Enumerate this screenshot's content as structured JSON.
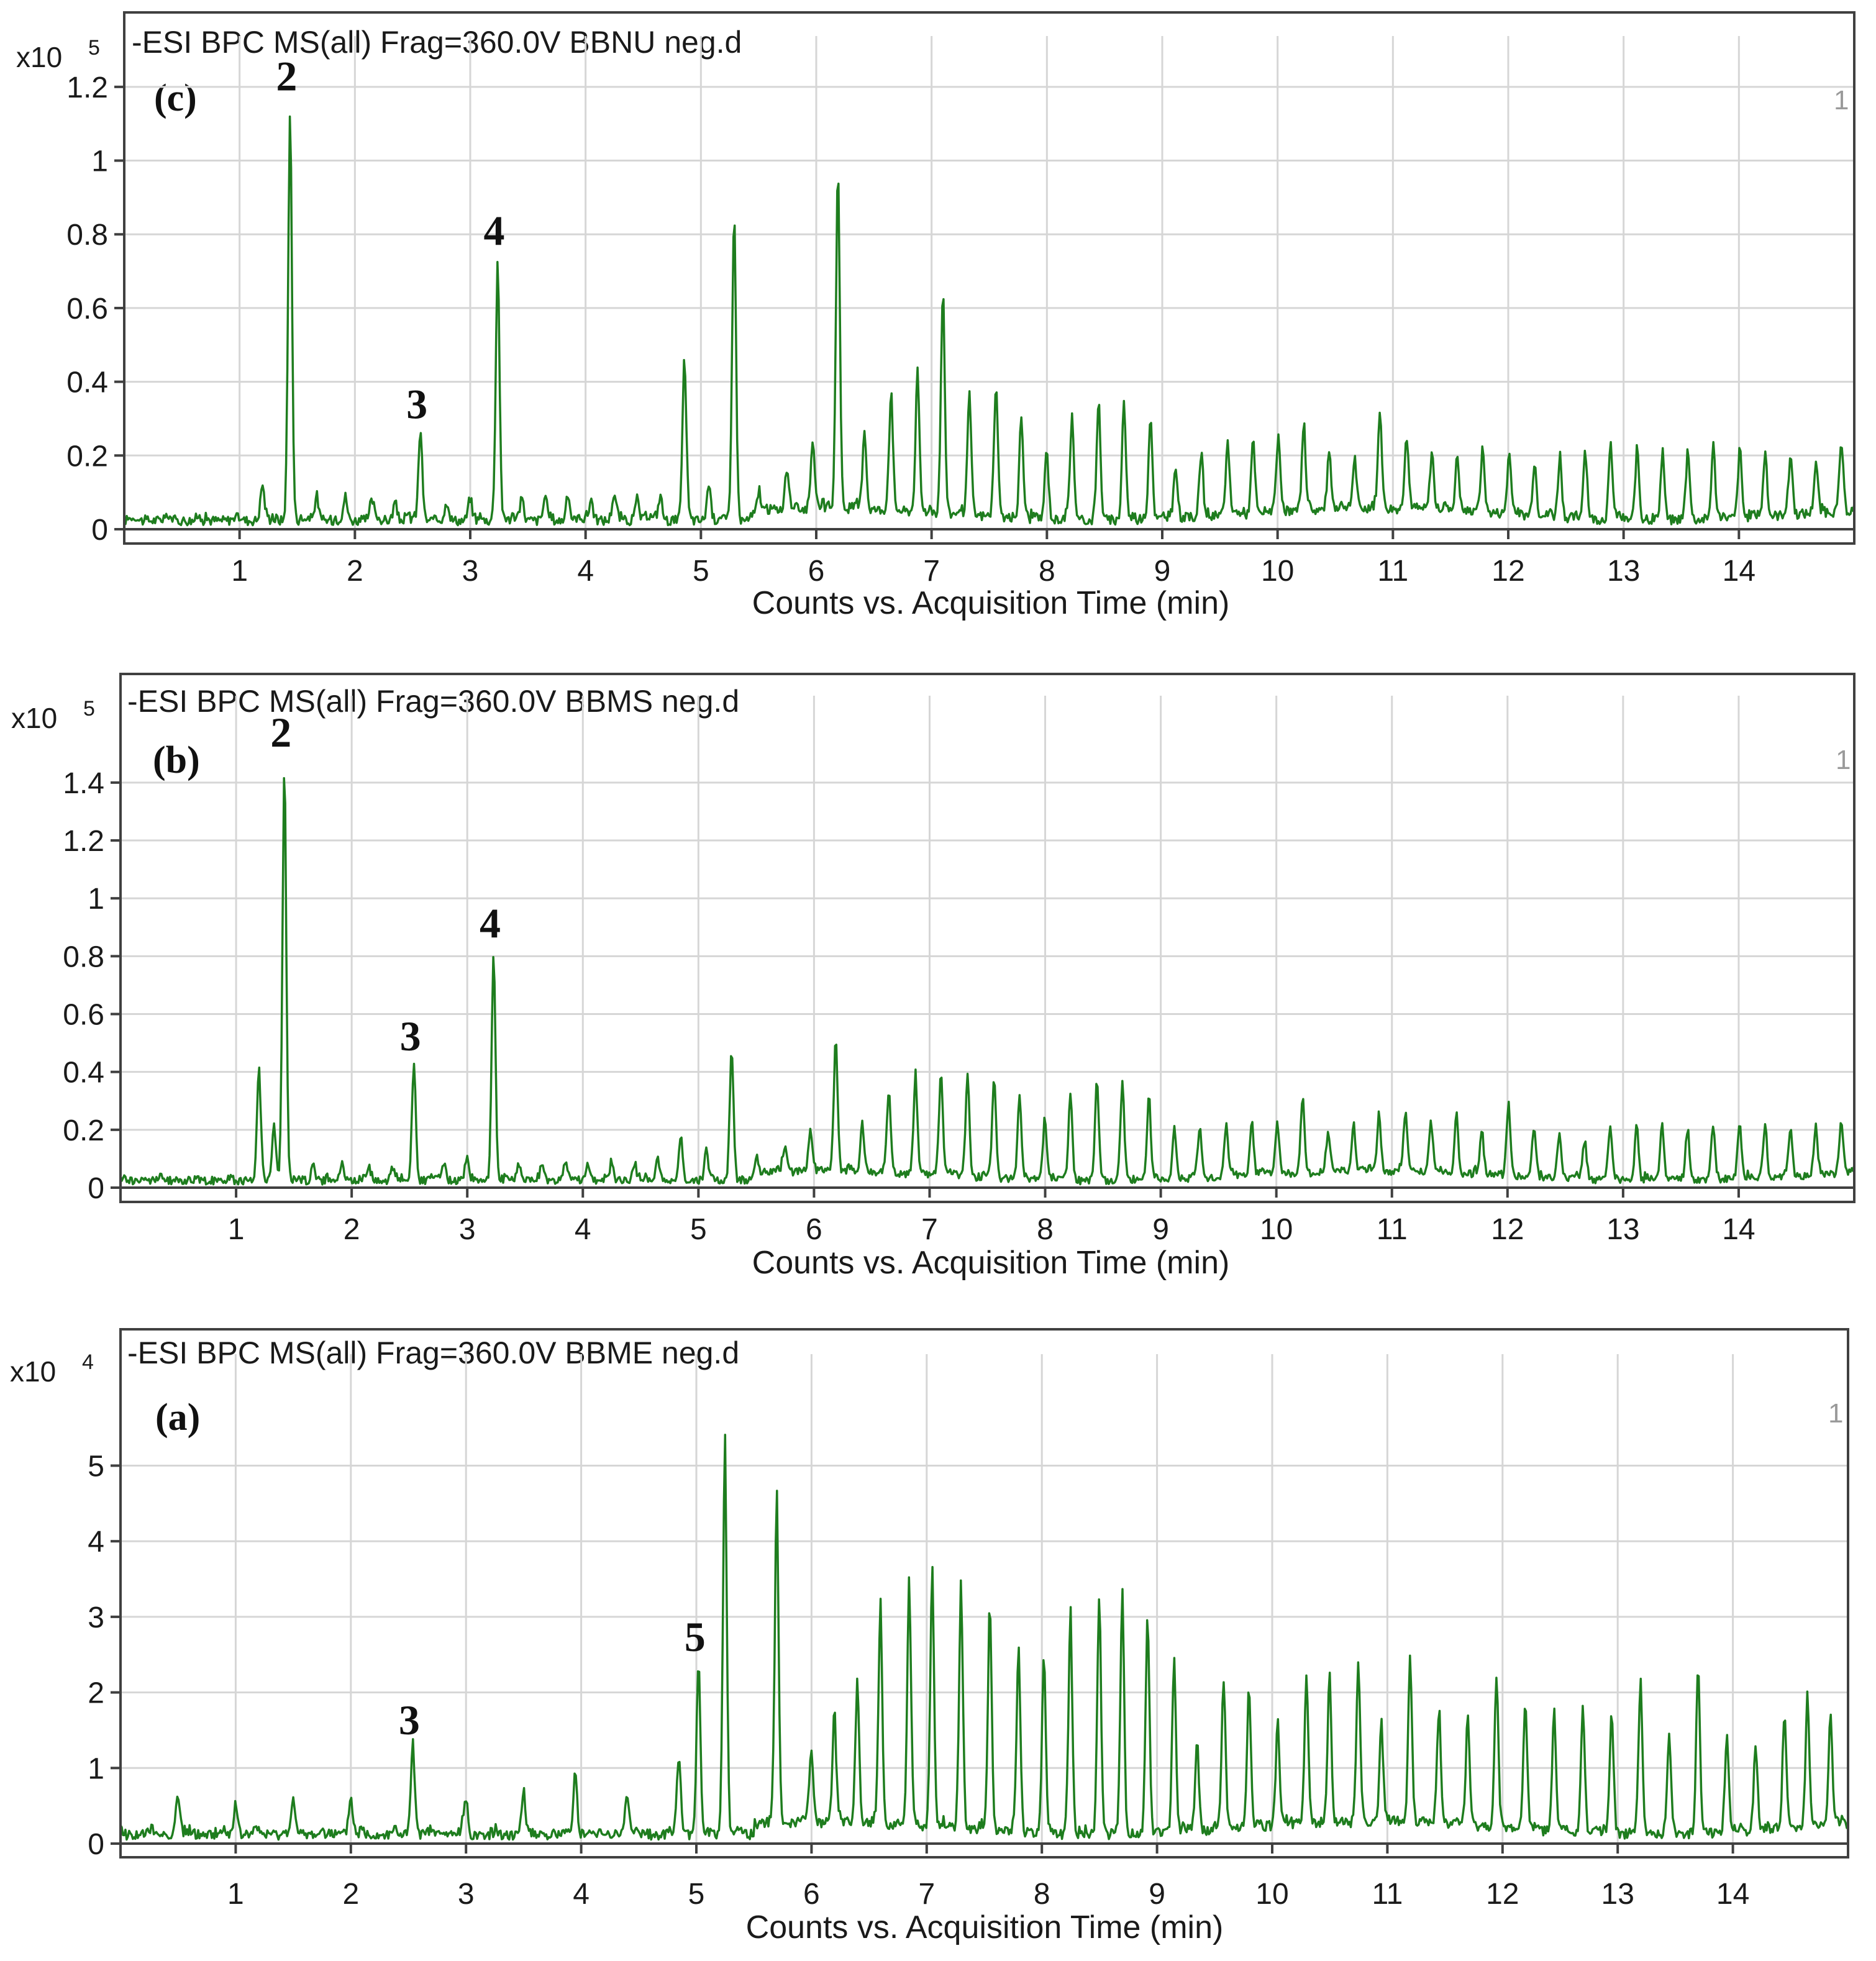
{
  "chart_data": [
    {
      "panel": "(c)",
      "type": "line",
      "title": "-ESI BPC MS(all) Frag=360.0V BBNU neg.d",
      "xlabel": "Counts vs. Acquisition Time (min)",
      "ylabel": "",
      "y_exponent_base": "x10",
      "y_exponent_power": "5",
      "corner_label": "1",
      "xlim": [
        0,
        15
      ],
      "ylim": [
        0,
        1.22
      ],
      "x_ticks": [
        1,
        2,
        3,
        4,
        5,
        6,
        7,
        8,
        9,
        10,
        11,
        12,
        13,
        14
      ],
      "x_tick_labels": [
        "1",
        "2",
        "3",
        "4",
        "5",
        "6",
        "7",
        "8",
        "9",
        "10",
        "11",
        "12",
        "13",
        "14"
      ],
      "y_ticks": [
        0,
        0.2,
        0.4,
        0.6,
        0.8,
        1.0,
        1.2
      ],
      "y_tick_labels": [
        "0",
        "0.2",
        "0.4",
        "0.6",
        "0.8",
        "1",
        "1.2"
      ],
      "grid": true,
      "series_color": "#1e7d1e",
      "baseline": 0.03,
      "peaks": [
        [
          1.2,
          0.1
        ],
        [
          1.44,
          1.14
        ],
        [
          1.67,
          0.07
        ],
        [
          1.92,
          0.06
        ],
        [
          2.15,
          0.05
        ],
        [
          2.35,
          0.05
        ],
        [
          2.57,
          0.25
        ],
        [
          2.8,
          0.05
        ],
        [
          3.0,
          0.06
        ],
        [
          3.24,
          0.72
        ],
        [
          3.45,
          0.06
        ],
        [
          3.65,
          0.05
        ],
        [
          3.85,
          0.07
        ],
        [
          4.05,
          0.06
        ],
        [
          4.25,
          0.06
        ],
        [
          4.45,
          0.06
        ],
        [
          4.65,
          0.07
        ],
        [
          4.86,
          0.44
        ],
        [
          5.07,
          0.1
        ],
        [
          5.29,
          0.86
        ],
        [
          5.5,
          0.06
        ],
        [
          5.75,
          0.1
        ],
        [
          5.97,
          0.19
        ],
        [
          6.19,
          0.95
        ],
        [
          6.42,
          0.22
        ],
        [
          6.65,
          0.32
        ],
        [
          6.88,
          0.38
        ],
        [
          7.1,
          0.62
        ],
        [
          7.33,
          0.33
        ],
        [
          7.56,
          0.35
        ],
        [
          7.78,
          0.28
        ],
        [
          8.0,
          0.19
        ],
        [
          8.22,
          0.29
        ],
        [
          8.45,
          0.32
        ],
        [
          8.67,
          0.33
        ],
        [
          8.9,
          0.29
        ],
        [
          9.12,
          0.14
        ],
        [
          9.34,
          0.17
        ],
        [
          9.57,
          0.2
        ],
        [
          9.79,
          0.2
        ],
        [
          10.01,
          0.2
        ],
        [
          10.23,
          0.22
        ],
        [
          10.45,
          0.16
        ],
        [
          10.67,
          0.14
        ],
        [
          10.89,
          0.27
        ],
        [
          11.12,
          0.2
        ],
        [
          11.34,
          0.16
        ],
        [
          11.56,
          0.15
        ],
        [
          11.78,
          0.17
        ],
        [
          12.01,
          0.16
        ],
        [
          12.23,
          0.15
        ],
        [
          12.45,
          0.17
        ],
        [
          12.67,
          0.18
        ],
        [
          12.89,
          0.2
        ],
        [
          13.12,
          0.2
        ],
        [
          13.34,
          0.19
        ],
        [
          13.56,
          0.19
        ],
        [
          13.78,
          0.2
        ],
        [
          14.01,
          0.19
        ],
        [
          14.23,
          0.18
        ],
        [
          14.45,
          0.16
        ],
        [
          14.67,
          0.14
        ],
        [
          14.89,
          0.19
        ]
      ],
      "annotations": [
        {
          "text": "2",
          "x": 1.44,
          "y": 1.14
        },
        {
          "text": "3",
          "x": 2.57,
          "y": 0.25
        },
        {
          "text": "4",
          "x": 3.24,
          "y": 0.72
        }
      ]
    },
    {
      "panel": "(b)",
      "type": "line",
      "title": "-ESI BPC MS(all) Frag=360.0V BBMS neg.d",
      "xlabel": "Counts vs. Acquisition Time (min)",
      "ylabel": "",
      "y_exponent_base": "x10",
      "y_exponent_power": "5",
      "corner_label": "1",
      "xlim": [
        0,
        15
      ],
      "ylim": [
        0,
        1.55
      ],
      "x_ticks": [
        1,
        2,
        3,
        4,
        5,
        6,
        7,
        8,
        9,
        10,
        11,
        12,
        13,
        14
      ],
      "x_tick_labels": [
        "1",
        "2",
        "3",
        "4",
        "5",
        "6",
        "7",
        "8",
        "9",
        "10",
        "11",
        "12",
        "13",
        "14"
      ],
      "y_ticks": [
        0,
        0.2,
        0.4,
        0.6,
        0.8,
        1.0,
        1.2,
        1.4
      ],
      "y_tick_labels": [
        "0",
        "0.2",
        "0.4",
        "0.6",
        "0.8",
        "1",
        "1.2",
        "1.4"
      ],
      "grid": true,
      "series_color": "#1e7d1e",
      "baseline": 0.03,
      "peaks": [
        [
          1.2,
          0.39
        ],
        [
          1.33,
          0.19
        ],
        [
          1.42,
          1.46
        ],
        [
          1.67,
          0.06
        ],
        [
          1.92,
          0.06
        ],
        [
          2.15,
          0.05
        ],
        [
          2.35,
          0.05
        ],
        [
          2.54,
          0.41
        ],
        [
          2.8,
          0.06
        ],
        [
          3.0,
          0.08
        ],
        [
          3.23,
          0.8
        ],
        [
          3.45,
          0.06
        ],
        [
          3.65,
          0.05
        ],
        [
          3.85,
          0.06
        ],
        [
          4.05,
          0.06
        ],
        [
          4.25,
          0.06
        ],
        [
          4.45,
          0.06
        ],
        [
          4.65,
          0.08
        ],
        [
          4.85,
          0.14
        ],
        [
          5.07,
          0.1
        ],
        [
          5.29,
          0.46
        ],
        [
          5.5,
          0.08
        ],
        [
          5.75,
          0.08
        ],
        [
          5.97,
          0.13
        ],
        [
          6.19,
          0.47
        ],
        [
          6.42,
          0.17
        ],
        [
          6.65,
          0.28
        ],
        [
          6.88,
          0.34
        ],
        [
          7.1,
          0.37
        ],
        [
          7.33,
          0.36
        ],
        [
          7.56,
          0.35
        ],
        [
          7.78,
          0.29
        ],
        [
          8.0,
          0.22
        ],
        [
          8.22,
          0.31
        ],
        [
          8.45,
          0.35
        ],
        [
          8.67,
          0.34
        ],
        [
          8.9,
          0.29
        ],
        [
          9.12,
          0.18
        ],
        [
          9.34,
          0.17
        ],
        [
          9.57,
          0.18
        ],
        [
          9.79,
          0.19
        ],
        [
          10.01,
          0.19
        ],
        [
          10.23,
          0.26
        ],
        [
          10.45,
          0.14
        ],
        [
          10.67,
          0.17
        ],
        [
          10.89,
          0.2
        ],
        [
          11.12,
          0.2
        ],
        [
          11.34,
          0.17
        ],
        [
          11.56,
          0.2
        ],
        [
          11.78,
          0.16
        ],
        [
          12.01,
          0.24
        ],
        [
          12.23,
          0.17
        ],
        [
          12.45,
          0.15
        ],
        [
          12.67,
          0.14
        ],
        [
          12.89,
          0.16
        ],
        [
          13.12,
          0.21
        ],
        [
          13.34,
          0.2
        ],
        [
          13.56,
          0.18
        ],
        [
          13.78,
          0.19
        ],
        [
          14.01,
          0.19
        ],
        [
          14.23,
          0.19
        ],
        [
          14.45,
          0.17
        ],
        [
          14.67,
          0.16
        ],
        [
          14.89,
          0.19
        ]
      ],
      "annotations": [
        {
          "text": "2",
          "x": 1.42,
          "y": 1.46
        },
        {
          "text": "3",
          "x": 2.54,
          "y": 0.41
        },
        {
          "text": "4",
          "x": 3.23,
          "y": 0.8
        }
      ]
    },
    {
      "panel": "(a)",
      "type": "line",
      "title": "-ESI BPC MS(all) Frag=360.0V BBME neg.d",
      "xlabel": "Counts vs. Acquisition Time (min)",
      "ylabel": "",
      "y_exponent_base": "x10",
      "y_exponent_power": "4",
      "corner_label": "1",
      "xlim": [
        0,
        15
      ],
      "ylim": [
        0,
        5.9
      ],
      "x_ticks": [
        1,
        2,
        3,
        4,
        5,
        6,
        7,
        8,
        9,
        10,
        11,
        12,
        13,
        14
      ],
      "x_tick_labels": [
        "1",
        "2",
        "3",
        "4",
        "5",
        "6",
        "7",
        "8",
        "9",
        "10",
        "11",
        "12",
        "13",
        "14"
      ],
      "y_ticks": [
        0,
        1,
        2,
        3,
        4,
        5
      ],
      "y_tick_labels": [
        "0",
        "1",
        "2",
        "3",
        "4",
        "5"
      ],
      "grid": true,
      "series_color": "#1e7d1e",
      "baseline": 0.15,
      "peaks": [
        [
          0.5,
          0.55
        ],
        [
          1.0,
          0.4
        ],
        [
          1.5,
          0.45
        ],
        [
          2.0,
          0.5
        ],
        [
          2.54,
          1.2
        ],
        [
          3.0,
          0.45
        ],
        [
          3.5,
          0.6
        ],
        [
          3.95,
          0.85
        ],
        [
          4.4,
          0.55
        ],
        [
          4.85,
          1.1
        ],
        [
          5.02,
          2.3
        ],
        [
          5.25,
          5.3
        ],
        [
          5.7,
          4.3
        ],
        [
          6.0,
          0.9
        ],
        [
          6.2,
          1.5
        ],
        [
          6.4,
          1.9
        ],
        [
          6.6,
          2.9
        ],
        [
          6.85,
          3.25
        ],
        [
          7.05,
          3.4
        ],
        [
          7.3,
          3.3
        ],
        [
          7.55,
          3.05
        ],
        [
          7.8,
          2.45
        ],
        [
          8.02,
          2.4
        ],
        [
          8.25,
          3.0
        ],
        [
          8.5,
          3.2
        ],
        [
          8.7,
          3.2
        ],
        [
          8.92,
          2.9
        ],
        [
          9.15,
          2.35
        ],
        [
          9.35,
          1.2
        ],
        [
          9.58,
          2.0
        ],
        [
          9.8,
          1.9
        ],
        [
          10.05,
          1.4
        ],
        [
          10.3,
          2.0
        ],
        [
          10.5,
          1.95
        ],
        [
          10.75,
          2.1
        ],
        [
          10.95,
          1.3
        ],
        [
          11.2,
          2.2
        ],
        [
          11.45,
          1.55
        ],
        [
          11.7,
          1.4
        ],
        [
          11.95,
          1.95
        ],
        [
          12.2,
          1.75
        ],
        [
          12.45,
          1.6
        ],
        [
          12.7,
          1.7
        ],
        [
          12.95,
          1.65
        ],
        [
          13.2,
          2.0
        ],
        [
          13.45,
          1.3
        ],
        [
          13.7,
          2.25
        ],
        [
          13.95,
          1.35
        ],
        [
          14.2,
          1.15
        ],
        [
          14.45,
          1.55
        ],
        [
          14.65,
          1.7
        ],
        [
          14.85,
          1.5
        ]
      ],
      "annotations": [
        {
          "text": "3",
          "x": 2.54,
          "y": 1.2
        },
        {
          "text": "5",
          "x": 5.02,
          "y": 2.3
        }
      ]
    }
  ]
}
